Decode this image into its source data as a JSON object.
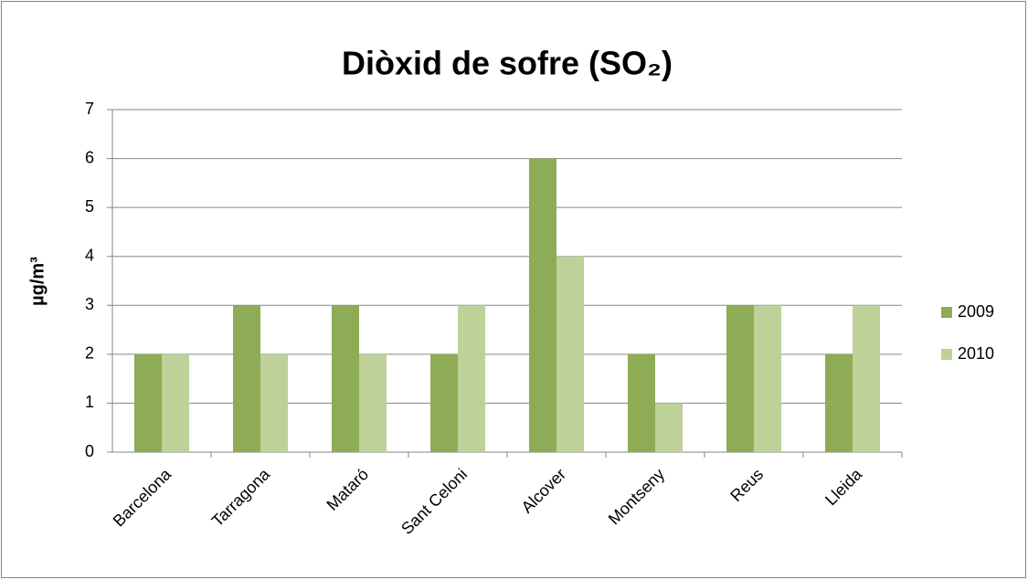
{
  "chart_data": {
    "type": "bar",
    "title": "Diòxid de sofre (SO₂)",
    "y_label": "µg/m³",
    "categories": [
      "Barcelona",
      "Tarragona",
      "Mataró",
      "Sant Celoni",
      "Alcover",
      "Montseny",
      "Reus",
      "Lleida"
    ],
    "series": [
      {
        "name": "2009",
        "color": "#8eac55",
        "values": [
          2,
          3,
          3,
          2,
          6,
          2,
          3,
          2
        ]
      },
      {
        "name": "2010",
        "color": "#bdd199",
        "values": [
          2,
          2,
          2,
          3,
          4,
          1,
          3,
          3
        ]
      }
    ],
    "ylim": [
      0,
      7
    ],
    "yticks": [
      0,
      1,
      2,
      3,
      4,
      5,
      6,
      7
    ],
    "grid": true,
    "legend": "right"
  }
}
